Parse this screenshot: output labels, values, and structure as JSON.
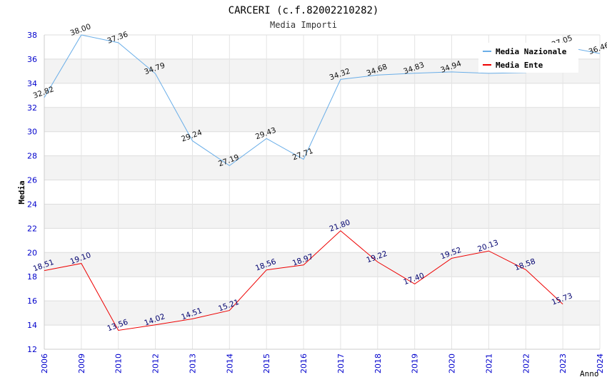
{
  "chart_data": {
    "type": "line",
    "title": "CARCERI (c.f.82002210282)",
    "subtitle": "Media Importi",
    "ylabel": "Media",
    "xlabel": "Anno",
    "ylim": [
      12,
      38
    ],
    "yticks": [
      12,
      14,
      16,
      18,
      20,
      22,
      24,
      26,
      28,
      30,
      32,
      34,
      36,
      38
    ],
    "categories": [
      "2006",
      "2009",
      "2010",
      "2012",
      "2013",
      "2014",
      "2015",
      "2016",
      "2017",
      "2018",
      "2019",
      "2020",
      "2021",
      "2022",
      "2023",
      "2024"
    ],
    "legend_position": "top-right",
    "series": [
      {
        "name": "Media Nazionale",
        "color": "#6aaee8",
        "values": [
          32.82,
          38.0,
          37.36,
          34.79,
          29.24,
          27.19,
          29.43,
          27.71,
          34.32,
          34.68,
          34.83,
          34.94,
          34.82,
          34.88,
          37.05,
          36.46
        ],
        "labels": [
          "32.82",
          "38.00",
          "37.36",
          "34.79",
          "29.24",
          "27.19",
          "29.43",
          "27.71",
          "34.32",
          "34.68",
          "34.83",
          "34.94",
          "",
          "",
          "37.05",
          "36.46"
        ]
      },
      {
        "name": "Media Ente",
        "color": "#ee0000",
        "values": [
          18.51,
          19.1,
          13.56,
          14.02,
          14.51,
          15.21,
          18.56,
          18.97,
          21.8,
          19.22,
          17.4,
          19.52,
          20.13,
          18.58,
          15.73,
          null
        ],
        "labels": [
          "18.51",
          "19.10",
          "13.56",
          "14.02",
          "14.51",
          "15.21",
          "18.56",
          "18.97",
          "21.80",
          "19.22",
          "17.40",
          "19.52",
          "20.13",
          "18.58",
          "15.73",
          ""
        ]
      }
    ]
  }
}
